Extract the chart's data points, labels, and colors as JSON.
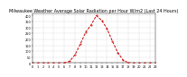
{
  "title": "Milwaukee Weather Average Solar Radiation per Hour W/m2 (Last 24 Hours)",
  "hours": [
    0,
    1,
    2,
    3,
    4,
    5,
    6,
    7,
    8,
    9,
    10,
    11,
    12,
    13,
    14,
    15,
    16,
    17,
    18,
    19,
    20,
    21,
    22,
    23
  ],
  "values": [
    0,
    0,
    0,
    0,
    0,
    0,
    2,
    15,
    70,
    160,
    260,
    320,
    400,
    360,
    290,
    185,
    90,
    25,
    3,
    0,
    0,
    0,
    0,
    0
  ],
  "line_color": "#cc0000",
  "bg_color": "#ffffff",
  "ylim": [
    0,
    420
  ],
  "xlim": [
    0,
    23
  ],
  "ytick_vals": [
    0,
    50,
    100,
    150,
    200,
    250,
    300,
    350,
    400
  ],
  "ytick_labels": [
    "0",
    "50",
    "100",
    "150",
    "200",
    "250",
    "300",
    "350",
    "400"
  ],
  "xtick_vals": [
    0,
    1,
    2,
    3,
    4,
    5,
    6,
    7,
    8,
    9,
    10,
    11,
    12,
    13,
    14,
    15,
    16,
    17,
    18,
    19,
    20,
    21,
    22,
    23
  ],
  "grid_color": "#bbbbbb",
  "title_fontsize": 3.5,
  "tick_fontsize": 2.5
}
